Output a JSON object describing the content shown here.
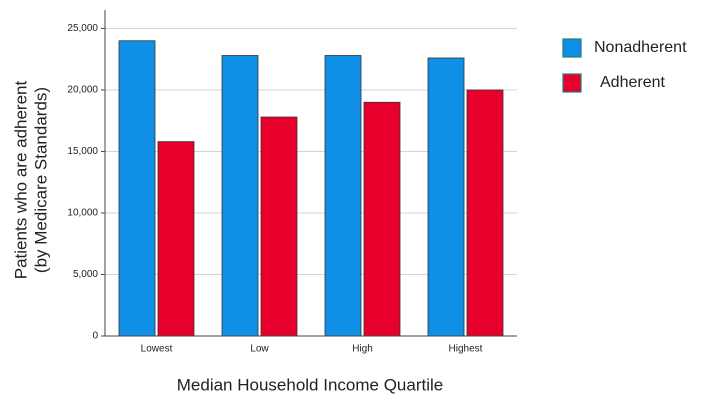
{
  "chart_data": {
    "type": "bar",
    "categories": [
      "Lowest",
      "Low",
      "High",
      "Highest"
    ],
    "series": [
      {
        "name": "Nonadherent",
        "color": "#0f8fe6",
        "values": [
          24000,
          22800,
          22800,
          22600
        ]
      },
      {
        "name": "Adherent",
        "color": "#e8002d",
        "values": [
          15800,
          17800,
          19000,
          20000
        ]
      }
    ],
    "xlabel": "Median Household Income Quartile",
    "ylabel": [
      "Patients who are adherent",
      "(by Medicare Standards)"
    ],
    "ylim": [
      0,
      26500
    ],
    "yticks": [
      0,
      {
        "value": 5000,
        "label": "5,000"
      },
      {
        "value": 10000,
        "label": "10,000"
      },
      {
        "value": 15000,
        "label": "15,000"
      },
      {
        "value": 20000,
        "label": "20,000"
      },
      {
        "value": 25000,
        "label": "25,000"
      }
    ],
    "grid": true,
    "legend": "right"
  }
}
